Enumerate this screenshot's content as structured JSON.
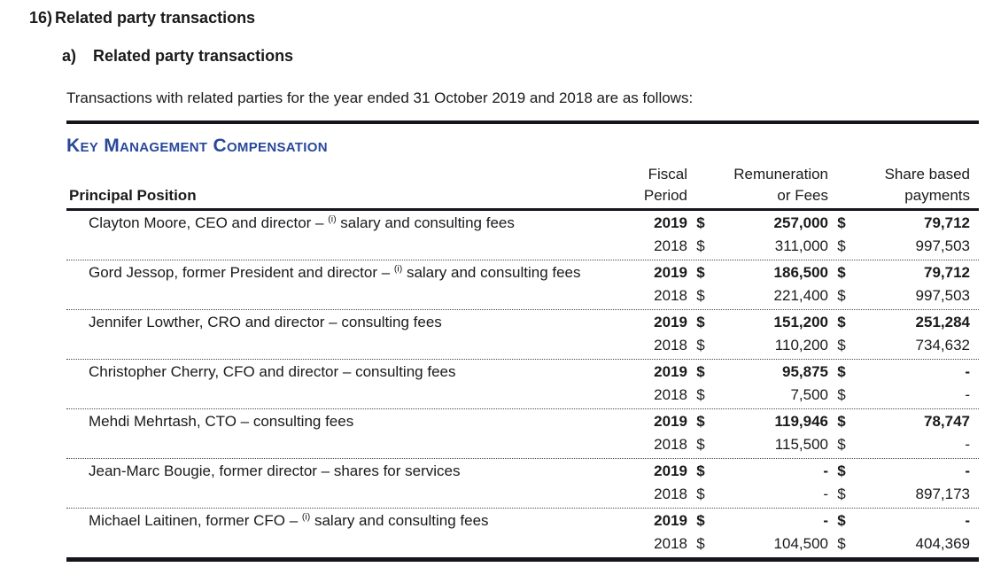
{
  "section": {
    "number": "16)",
    "title": "Related party transactions",
    "sub_letter": "a)",
    "sub_title": "Related party transactions",
    "intro": "Transactions with related parties for the year ended 31 October 2019 and 2018 are as follows:"
  },
  "table": {
    "title": "Key Management Compensation",
    "accent_color": "#28489b",
    "rule_color": "#15151c",
    "currency_symbol": "$",
    "headers": {
      "position": "Principal Position",
      "fiscal_line1": "Fiscal",
      "fiscal_line2": "Period",
      "remuneration_line1": "Remuneration",
      "remuneration_line2": "or Fees",
      "share_line1": "Share based",
      "share_line2": "payments"
    },
    "rows": [
      {
        "position": "Clayton Moore, CEO and director – ",
        "footnote_sup": "(i)",
        "position_rest": "salary and consulting fees",
        "years": [
          {
            "fiscal_period": "2019",
            "remuneration_or_fees": "257,000",
            "share_based_payments": "79,712",
            "bold": true
          },
          {
            "fiscal_period": "2018",
            "remuneration_or_fees": "311,000",
            "share_based_payments": "997,503",
            "bold": false
          }
        ]
      },
      {
        "position": "Gord Jessop, former President and director – ",
        "footnote_sup": "(i)",
        "position_rest": "salary and consulting fees",
        "years": [
          {
            "fiscal_period": "2019",
            "remuneration_or_fees": "186,500",
            "share_based_payments": "79,712",
            "bold": true
          },
          {
            "fiscal_period": "2018",
            "remuneration_or_fees": "221,400",
            "share_based_payments": "997,503",
            "bold": false
          }
        ]
      },
      {
        "position": "Jennifer Lowther, CRO and director – consulting fees",
        "footnote_sup": "",
        "position_rest": "",
        "years": [
          {
            "fiscal_period": "2019",
            "remuneration_or_fees": "151,200",
            "share_based_payments": "251,284",
            "bold": true
          },
          {
            "fiscal_period": "2018",
            "remuneration_or_fees": "110,200",
            "share_based_payments": "734,632",
            "bold": false
          }
        ]
      },
      {
        "position": "Christopher Cherry, CFO and director – consulting fees",
        "footnote_sup": "",
        "position_rest": "",
        "years": [
          {
            "fiscal_period": "2019",
            "remuneration_or_fees": "95,875",
            "share_based_payments": "-",
            "bold": true
          },
          {
            "fiscal_period": "2018",
            "remuneration_or_fees": "7,500",
            "share_based_payments": "-",
            "bold": false
          }
        ]
      },
      {
        "position": "Mehdi Mehrtash, CTO – consulting fees",
        "footnote_sup": "",
        "position_rest": "",
        "years": [
          {
            "fiscal_period": "2019",
            "remuneration_or_fees": "119,946",
            "share_based_payments": "78,747",
            "bold": true
          },
          {
            "fiscal_period": "2018",
            "remuneration_or_fees": "115,500",
            "share_based_payments": "-",
            "bold": false
          }
        ]
      },
      {
        "position": "Jean-Marc Bougie, former director – shares for services",
        "footnote_sup": "",
        "position_rest": "",
        "years": [
          {
            "fiscal_period": "2019",
            "remuneration_or_fees": "-",
            "share_based_payments": "-",
            "bold": true
          },
          {
            "fiscal_period": "2018",
            "remuneration_or_fees": "-",
            "share_based_payments": "897,173",
            "bold": false
          }
        ]
      },
      {
        "position": "Michael Laitinen, former CFO – ",
        "footnote_sup": "(i)",
        "position_rest": "salary and consulting fees",
        "years": [
          {
            "fiscal_period": "2019",
            "remuneration_or_fees": "-",
            "share_based_payments": "-",
            "bold": true
          },
          {
            "fiscal_period": "2018",
            "remuneration_or_fees": "104,500",
            "share_based_payments": "404,369",
            "bold": false
          }
        ]
      }
    ]
  }
}
